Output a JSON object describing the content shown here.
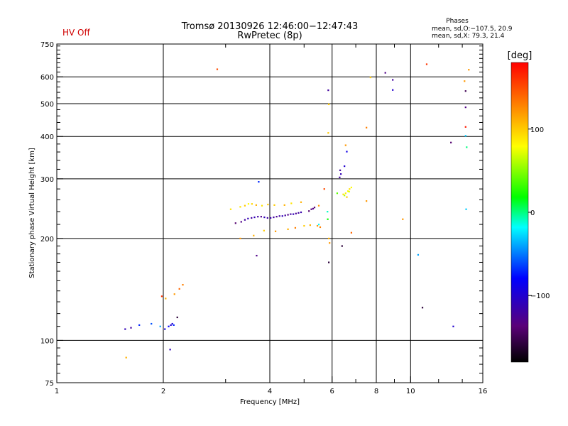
{
  "chart_data": {
    "type": "scatter",
    "title": "Tromsø 20130926 12:46:00−12:47:43",
    "subtitle": "RwPretec (8p)",
    "status": "HV Off",
    "status_color": "#d00000",
    "stats": {
      "heading": "Phases",
      "line_o": "mean, sd,O:−107.5, 20.9",
      "line_x": "mean, sd,X: 79.3, 21.4"
    },
    "xlabel": "Frequency [MHz]",
    "ylabel": "Stationary phase Virtual Height [km]",
    "x_scale": "log",
    "y_scale": "log",
    "xlim": [
      1,
      16
    ],
    "ylim": [
      75,
      750
    ],
    "x_ticks": [
      {
        "v": 1,
        "label": "1"
      },
      {
        "v": 2,
        "label": "2"
      },
      {
        "v": 4,
        "label": "4"
      },
      {
        "v": 6,
        "label": "6"
      },
      {
        "v": 8,
        "label": "8"
      },
      {
        "v": 10,
        "label": "10"
      },
      {
        "v": 16,
        "label": "16"
      }
    ],
    "x_grid": [
      2,
      4,
      6,
      8,
      10
    ],
    "y_ticks": [
      {
        "v": 75,
        "label": "75"
      },
      {
        "v": 100,
        "label": "100"
      },
      {
        "v": 200,
        "label": "200"
      },
      {
        "v": 300,
        "label": "300"
      },
      {
        "v": 400,
        "label": "400"
      },
      {
        "v": 500,
        "label": "500"
      },
      {
        "v": 600,
        "label": "600"
      },
      {
        "v": 750,
        "label": "750"
      }
    ],
    "y_grid": [
      100,
      200,
      300,
      400,
      500,
      600
    ],
    "colorbar": {
      "label": "[deg]",
      "min": -180,
      "max": 180,
      "ticks": [
        {
          "v": 100,
          "label": "100"
        },
        {
          "v": 0,
          "label": "0"
        },
        {
          "v": -100,
          "label": "−100"
        }
      ]
    },
    "points": [
      [
        1.57,
        89,
        110
      ],
      [
        1.56,
        108,
        -110
      ],
      [
        1.62,
        109,
        -120
      ],
      [
        1.71,
        111,
        -70
      ],
      [
        1.85,
        112,
        -60
      ],
      [
        1.96,
        110,
        -40
      ],
      [
        2.02,
        108,
        -90
      ],
      [
        2.07,
        110,
        -80
      ],
      [
        2.1,
        111,
        -100
      ],
      [
        2.12,
        112,
        -95
      ],
      [
        2.14,
        111,
        -70
      ],
      [
        2.09,
        94,
        -110
      ],
      [
        2.19,
        117,
        -160
      ],
      [
        1.98,
        135,
        160
      ],
      [
        2.03,
        133,
        110
      ],
      [
        2.15,
        137,
        120
      ],
      [
        2.22,
        142,
        140
      ],
      [
        2.27,
        146,
        130
      ],
      [
        2.84,
        632,
        150
      ],
      [
        3.72,
        294,
        -70
      ],
      [
        3.67,
        178,
        -130
      ],
      [
        3.2,
        222,
        -140
      ],
      [
        3.32,
        224,
        -130
      ],
      [
        3.4,
        227,
        -120
      ],
      [
        3.47,
        229,
        -110
      ],
      [
        3.55,
        230,
        -120
      ],
      [
        3.62,
        231,
        -110
      ],
      [
        3.7,
        232,
        -120
      ],
      [
        3.78,
        232,
        -130
      ],
      [
        3.86,
        231,
        -110
      ],
      [
        3.94,
        230,
        -120
      ],
      [
        4.02,
        230,
        -115
      ],
      [
        4.1,
        231,
        -120
      ],
      [
        4.18,
        232,
        -125
      ],
      [
        4.26,
        233,
        -120
      ],
      [
        4.34,
        233,
        -110
      ],
      [
        4.42,
        234,
        -120
      ],
      [
        4.5,
        235,
        -130
      ],
      [
        4.58,
        236,
        -120
      ],
      [
        4.66,
        236,
        -110
      ],
      [
        4.74,
        237,
        -125
      ],
      [
        4.82,
        238,
        -120
      ],
      [
        4.9,
        239,
        -115
      ],
      [
        5.16,
        241,
        -140
      ],
      [
        5.24,
        244,
        -135
      ],
      [
        5.3,
        245,
        -130
      ],
      [
        5.35,
        247,
        -140
      ],
      [
        3.3,
        248,
        90
      ],
      [
        3.4,
        250,
        100
      ],
      [
        3.48,
        253,
        80
      ],
      [
        3.56,
        253,
        95
      ],
      [
        3.66,
        251,
        110
      ],
      [
        3.8,
        250,
        90
      ],
      [
        3.95,
        252,
        100
      ],
      [
        4.12,
        251,
        100
      ],
      [
        4.4,
        251,
        110
      ],
      [
        4.6,
        254,
        90
      ],
      [
        4.9,
        256,
        110
      ],
      [
        5.5,
        250,
        120
      ],
      [
        3.1,
        244,
        90
      ],
      [
        3.3,
        200,
        120
      ],
      [
        3.6,
        204,
        110
      ],
      [
        3.85,
        211,
        100
      ],
      [
        4.15,
        210,
        120
      ],
      [
        4.5,
        213,
        110
      ],
      [
        4.72,
        215,
        130
      ],
      [
        5.0,
        218,
        100
      ],
      [
        5.2,
        219,
        110
      ],
      [
        5.45,
        218,
        120
      ],
      [
        5.55,
        216,
        130
      ],
      [
        5.5,
        220,
        -20
      ],
      [
        5.7,
        280,
        150
      ],
      [
        5.85,
        548,
        -120
      ],
      [
        5.87,
        498,
        100
      ],
      [
        5.85,
        410,
        100
      ],
      [
        5.82,
        240,
        -10
      ],
      [
        5.83,
        228,
        20
      ],
      [
        5.87,
        200,
        110
      ],
      [
        5.9,
        194,
        120
      ],
      [
        5.87,
        170,
        -160
      ],
      [
        6.3,
        303,
        -120
      ],
      [
        6.35,
        310,
        -110
      ],
      [
        6.32,
        318,
        -120
      ],
      [
        6.5,
        327,
        -100
      ],
      [
        6.6,
        361,
        -90
      ],
      [
        6.55,
        377,
        120
      ],
      [
        6.45,
        270,
        90
      ],
      [
        6.55,
        272,
        85
      ],
      [
        6.65,
        276,
        80
      ],
      [
        6.72,
        280,
        90
      ],
      [
        6.8,
        283,
        80
      ],
      [
        6.5,
        268,
        60
      ],
      [
        6.6,
        265,
        100
      ],
      [
        6.7,
        275,
        70
      ],
      [
        6.4,
        190,
        -160
      ],
      [
        6.8,
        208,
        140
      ],
      [
        6.2,
        272,
        40
      ],
      [
        7.5,
        258,
        120
      ],
      [
        7.5,
        425,
        130
      ],
      [
        7.7,
        598,
        100
      ],
      [
        8.48,
        617,
        -130
      ],
      [
        8.9,
        588,
        -120
      ],
      [
        8.9,
        549,
        -100
      ],
      [
        9.5,
        228,
        120
      ],
      [
        10.5,
        179,
        -40
      ],
      [
        10.8,
        125,
        -160
      ],
      [
        11.1,
        654,
        160
      ],
      [
        13.0,
        384,
        -140
      ],
      [
        13.2,
        110,
        -100
      ],
      [
        14.2,
        583,
        120
      ],
      [
        14.3,
        545,
        -150
      ],
      [
        14.3,
        488,
        -130
      ],
      [
        14.3,
        427,
        170
      ],
      [
        14.3,
        402,
        -30
      ],
      [
        14.4,
        372,
        0
      ],
      [
        14.35,
        244,
        -30
      ],
      [
        14.6,
        630,
        120
      ]
    ]
  }
}
